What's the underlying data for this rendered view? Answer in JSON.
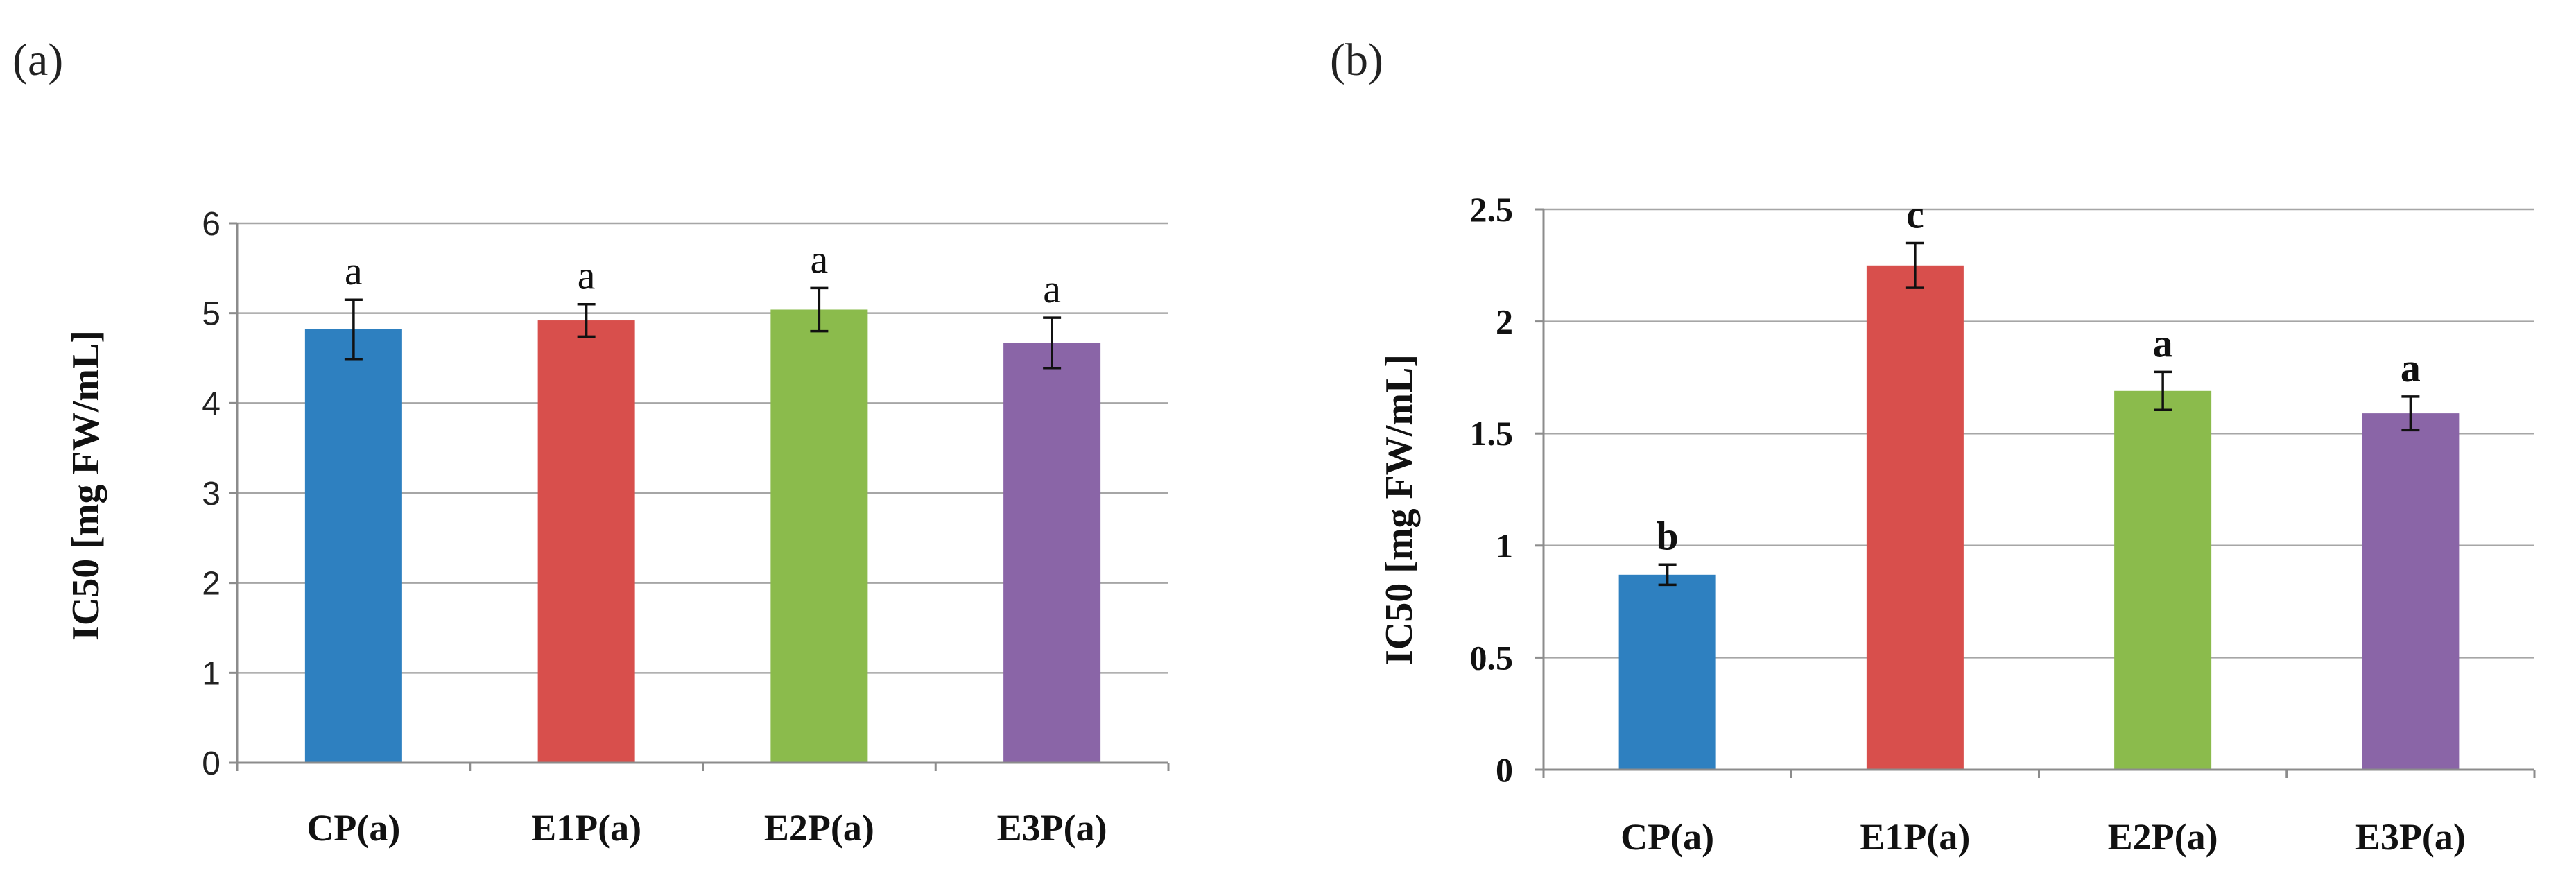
{
  "chart_data": [
    {
      "type": "bar",
      "panel_label": "(a)",
      "title": "",
      "xlabel": "",
      "ylabel": "IC50 [mg FW/mL]",
      "categories": [
        "CP(a)",
        "E1P(a)",
        "E2P(a)",
        "E3P(a)"
      ],
      "values": [
        4.82,
        4.92,
        5.04,
        4.67
      ],
      "errors": [
        0.33,
        0.18,
        0.24,
        0.28
      ],
      "significance_labels": [
        "a",
        "a",
        "a",
        "a"
      ],
      "colors": [
        "#2e80c0",
        "#d84f4c",
        "#8bbb4c",
        "#8a65a7"
      ],
      "ylim": [
        0,
        6
      ],
      "yticks": [
        0,
        1,
        2,
        3,
        4,
        5,
        6
      ],
      "ytick_labels": [
        "0",
        "1",
        "2",
        "3",
        "4",
        "5",
        "6"
      ],
      "grid": true,
      "legend": "none"
    },
    {
      "type": "bar",
      "panel_label": "(b)",
      "title": "",
      "xlabel": "",
      "ylabel": "IC50 [mg FW/mL]",
      "categories": [
        "CP(a)",
        "E1P(a)",
        "E2P(a)",
        "E3P(a)"
      ],
      "values": [
        0.87,
        2.25,
        1.69,
        1.59
      ],
      "errors": [
        0.045,
        0.1,
        0.085,
        0.075
      ],
      "significance_labels": [
        "b",
        "c",
        "a",
        "a"
      ],
      "colors": [
        "#2e80c0",
        "#d84f4c",
        "#8bbb4c",
        "#8a65a7"
      ],
      "ylim": [
        0,
        2.5
      ],
      "yticks": [
        0,
        0.5,
        1,
        1.5,
        2,
        2.5
      ],
      "ytick_labels": [
        "0",
        "0.5",
        "1",
        "1.5",
        "2",
        "2.5"
      ],
      "grid": true,
      "legend": "none"
    }
  ]
}
